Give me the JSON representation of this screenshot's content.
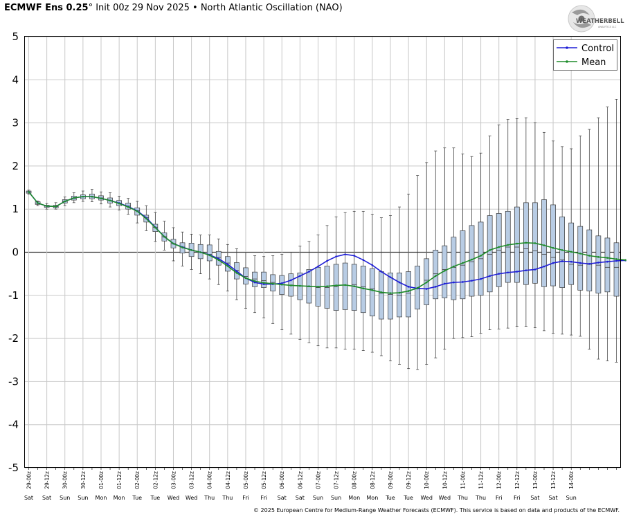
{
  "header": {
    "model": "ECMWF Ens 0.25",
    "degree": "°",
    "init": " Init 00z 29 Nov 2025",
    "bullet": " • ",
    "index": "North Atlantic Oscillation (NAO)"
  },
  "logo": {
    "line1": "WEATHERBELL",
    "line2": "ANALYTICS LLC",
    "icon": "hurricane-swirl-icon"
  },
  "footer": {
    "copyright": "© 2025 European Centre for Medium-Range Weather Forecasts (ECMWF). This service is based on data and products of the ECMWF."
  },
  "chart_data": {
    "type": "box",
    "title": "North Atlantic Oscillation (NAO)",
    "ylim": [
      -5,
      5
    ],
    "yticks": [
      5,
      4,
      3,
      2,
      1,
      0,
      -1,
      -2,
      -3,
      -4,
      -5
    ],
    "grid": true,
    "legend_position": "top-right",
    "legend": [
      {
        "name": "Control",
        "color": "#1f1fd6"
      },
      {
        "name": "Mean",
        "color": "#1e8c2a"
      }
    ],
    "x_labels": [
      "29-00z",
      "29-12z",
      "30-00z",
      "30-12z",
      "01-00z",
      "01-12z",
      "02-00z",
      "02-12z",
      "03-00z",
      "03-12z",
      "04-00z",
      "04-12z",
      "05-00z",
      "05-12z",
      "06-00z",
      "06-12z",
      "07-00z",
      "07-12z",
      "08-00z",
      "08-12z",
      "09-00z",
      "09-12z",
      "10-00z",
      "10-12z",
      "11-00z",
      "11-12z",
      "12-00z",
      "12-12z",
      "13-00z",
      "13-12z",
      "14-00z"
    ],
    "x_days": [
      "Sat",
      "Sat",
      "Sun",
      "Sun",
      "Mon",
      "Mon",
      "Tue",
      "Tue",
      "Wed",
      "Wed",
      "Thu",
      "Thu",
      "Fri",
      "Fri",
      "Sat",
      "Sat",
      "Sun",
      "Sun",
      "Mon",
      "Mon",
      "Tue",
      "Tue",
      "Wed",
      "Wed",
      "Thu",
      "Thu",
      "Fri",
      "Fri",
      "Sat",
      "Sat",
      "Sun"
    ],
    "steps_per_label": 2,
    "box_color": "#b8cce4",
    "boxes": [
      {
        "min": 1.35,
        "q1": 1.37,
        "med": 1.4,
        "q3": 1.42,
        "max": 1.44
      },
      {
        "min": 1.08,
        "q1": 1.11,
        "med": 1.14,
        "q3": 1.17,
        "max": 1.19
      },
      {
        "min": 1.0,
        "q1": 1.04,
        "med": 1.07,
        "q3": 1.09,
        "max": 1.13
      },
      {
        "min": 1.0,
        "q1": 1.03,
        "med": 1.06,
        "q3": 1.09,
        "max": 1.15
      },
      {
        "min": 1.08,
        "q1": 1.14,
        "med": 1.18,
        "q3": 1.22,
        "max": 1.28
      },
      {
        "min": 1.15,
        "q1": 1.21,
        "med": 1.25,
        "q3": 1.3,
        "max": 1.38
      },
      {
        "min": 1.18,
        "q1": 1.24,
        "med": 1.29,
        "q3": 1.33,
        "max": 1.42
      },
      {
        "min": 1.17,
        "q1": 1.24,
        "med": 1.29,
        "q3": 1.35,
        "max": 1.46
      },
      {
        "min": 1.12,
        "q1": 1.21,
        "med": 1.26,
        "q3": 1.31,
        "max": 1.4
      },
      {
        "min": 1.05,
        "q1": 1.14,
        "med": 1.2,
        "q3": 1.26,
        "max": 1.38
      },
      {
        "min": 0.98,
        "q1": 1.08,
        "med": 1.14,
        "q3": 1.2,
        "max": 1.3
      },
      {
        "min": 0.88,
        "q1": 1.0,
        "med": 1.07,
        "q3": 1.14,
        "max": 1.25
      },
      {
        "min": 0.68,
        "q1": 0.86,
        "med": 0.96,
        "q3": 1.03,
        "max": 1.18
      },
      {
        "min": 0.5,
        "q1": 0.7,
        "med": 0.8,
        "q3": 0.86,
        "max": 1.08
      },
      {
        "min": 0.25,
        "q1": 0.48,
        "med": 0.58,
        "q3": 0.65,
        "max": 0.92
      },
      {
        "min": 0.05,
        "q1": 0.26,
        "med": 0.36,
        "q3": 0.45,
        "max": 0.72
      },
      {
        "min": -0.2,
        "q1": 0.1,
        "med": 0.2,
        "q3": 0.3,
        "max": 0.57
      },
      {
        "min": -0.32,
        "q1": -0.02,
        "med": 0.12,
        "q3": 0.22,
        "max": 0.47
      },
      {
        "min": -0.4,
        "q1": -0.1,
        "med": 0.05,
        "q3": 0.21,
        "max": 0.42
      },
      {
        "min": -0.5,
        "q1": -0.15,
        "med": 0.0,
        "q3": 0.18,
        "max": 0.4
      },
      {
        "min": -0.62,
        "q1": -0.2,
        "med": -0.05,
        "q3": 0.17,
        "max": 0.4
      },
      {
        "min": -0.75,
        "q1": -0.3,
        "med": -0.12,
        "q3": 0.02,
        "max": 0.31
      },
      {
        "min": -0.9,
        "q1": -0.44,
        "med": -0.25,
        "q3": -0.1,
        "max": 0.18
      },
      {
        "min": -1.1,
        "q1": -0.62,
        "med": -0.42,
        "q3": -0.24,
        "max": 0.08
      },
      {
        "min": -1.3,
        "q1": -0.74,
        "med": -0.56,
        "q3": -0.36,
        "max": 0.0
      },
      {
        "min": -1.4,
        "q1": -0.8,
        "med": -0.62,
        "q3": -0.46,
        "max": -0.08
      },
      {
        "min": -1.52,
        "q1": -0.82,
        "med": -0.66,
        "q3": -0.46,
        "max": -0.1
      },
      {
        "min": -1.65,
        "q1": -0.9,
        "med": -0.7,
        "q3": -0.52,
        "max": -0.08
      },
      {
        "min": -1.8,
        "q1": -0.98,
        "med": -0.75,
        "q3": -0.54,
        "max": -0.05
      },
      {
        "min": -1.9,
        "q1": -1.02,
        "med": -0.76,
        "q3": -0.5,
        "max": 0.0
      },
      {
        "min": -2.02,
        "q1": -1.1,
        "med": -0.78,
        "q3": -0.48,
        "max": 0.14
      },
      {
        "min": -2.1,
        "q1": -1.18,
        "med": -0.8,
        "q3": -0.4,
        "max": 0.25
      },
      {
        "min": -2.17,
        "q1": -1.25,
        "med": -0.82,
        "q3": -0.35,
        "max": 0.4
      },
      {
        "min": -2.22,
        "q1": -1.3,
        "med": -0.82,
        "q3": -0.32,
        "max": 0.62
      },
      {
        "min": -2.22,
        "q1": -1.35,
        "med": -0.8,
        "q3": -0.28,
        "max": 0.82
      },
      {
        "min": -2.25,
        "q1": -1.33,
        "med": -0.76,
        "q3": -0.25,
        "max": 0.92
      },
      {
        "min": -2.25,
        "q1": -1.35,
        "med": -0.75,
        "q3": -0.28,
        "max": 0.95
      },
      {
        "min": -2.28,
        "q1": -1.4,
        "med": -0.8,
        "q3": -0.32,
        "max": 0.95
      },
      {
        "min": -2.32,
        "q1": -1.48,
        "med": -0.85,
        "q3": -0.38,
        "max": 0.88
      },
      {
        "min": -2.4,
        "q1": -1.55,
        "med": -0.95,
        "q3": -0.45,
        "max": 0.8
      },
      {
        "min": -2.52,
        "q1": -1.55,
        "med": -0.98,
        "q3": -0.48,
        "max": 0.85
      },
      {
        "min": -2.6,
        "q1": -1.5,
        "med": -1.0,
        "q3": -0.48,
        "max": 1.05
      },
      {
        "min": -2.7,
        "q1": -1.5,
        "med": -0.95,
        "q3": -0.45,
        "max": 1.35
      },
      {
        "min": -2.72,
        "q1": -1.32,
        "med": -0.85,
        "q3": -0.32,
        "max": 1.78
      },
      {
        "min": -2.6,
        "q1": -1.22,
        "med": -0.65,
        "q3": -0.15,
        "max": 2.08
      },
      {
        "min": -2.45,
        "q1": -1.08,
        "med": -0.5,
        "q3": 0.05,
        "max": 2.35
      },
      {
        "min": -2.25,
        "q1": -1.06,
        "med": -0.4,
        "q3": 0.15,
        "max": 2.42
      },
      {
        "min": -2.0,
        "q1": -1.1,
        "med": -0.35,
        "q3": 0.35,
        "max": 2.42
      },
      {
        "min": -1.98,
        "q1": -1.08,
        "med": -0.3,
        "q3": 0.5,
        "max": 2.28
      },
      {
        "min": -1.96,
        "q1": -1.02,
        "med": -0.22,
        "q3": 0.62,
        "max": 2.22
      },
      {
        "min": -1.88,
        "q1": -1.0,
        "med": -0.15,
        "q3": 0.7,
        "max": 2.3
      },
      {
        "min": -1.8,
        "q1": -0.92,
        "med": -0.05,
        "q3": 0.85,
        "max": 2.7
      },
      {
        "min": -1.78,
        "q1": -0.8,
        "med": 0.05,
        "q3": 0.9,
        "max": 2.95
      },
      {
        "min": -1.76,
        "q1": -0.7,
        "med": 0.12,
        "q3": 0.95,
        "max": 3.08
      },
      {
        "min": -1.72,
        "q1": -0.7,
        "med": 0.12,
        "q3": 1.05,
        "max": 3.1
      },
      {
        "min": -1.72,
        "q1": -0.75,
        "med": 0.08,
        "q3": 1.15,
        "max": 3.12
      },
      {
        "min": -1.75,
        "q1": -0.72,
        "med": 0.03,
        "q3": 1.15,
        "max": 3.0
      },
      {
        "min": -1.82,
        "q1": -0.8,
        "med": -0.05,
        "q3": 1.22,
        "max": 2.78
      },
      {
        "min": -1.88,
        "q1": -0.78,
        "med": -0.12,
        "q3": 1.1,
        "max": 2.58
      },
      {
        "min": -1.9,
        "q1": -0.82,
        "med": -0.18,
        "q3": 0.82,
        "max": 2.45
      },
      {
        "min": -1.92,
        "q1": -0.75,
        "med": -0.28,
        "q3": 0.68,
        "max": 2.4
      },
      {
        "min": -1.95,
        "q1": -0.88,
        "med": -0.3,
        "q3": 0.6,
        "max": 2.7
      },
      {
        "min": -2.25,
        "q1": -0.9,
        "med": -0.28,
        "q3": 0.52,
        "max": 2.85
      },
      {
        "min": -2.48,
        "q1": -0.95,
        "med": -0.3,
        "q3": 0.38,
        "max": 3.12
      },
      {
        "min": -2.52,
        "q1": -0.92,
        "med": -0.35,
        "q3": 0.33,
        "max": 3.37
      },
      {
        "min": -2.55,
        "q1": -1.02,
        "med": -0.35,
        "q3": 0.22,
        "max": 3.55
      }
    ],
    "series": [
      {
        "name": "Control",
        "color": "#1f1fd6",
        "values": [
          1.4,
          1.14,
          1.07,
          1.06,
          1.18,
          1.26,
          1.29,
          1.29,
          1.25,
          1.2,
          1.14,
          1.06,
          0.96,
          0.8,
          0.58,
          0.36,
          0.2,
          0.12,
          0.05,
          0.0,
          -0.06,
          -0.15,
          -0.28,
          -0.44,
          -0.6,
          -0.7,
          -0.74,
          -0.74,
          -0.72,
          -0.65,
          -0.55,
          -0.45,
          -0.33,
          -0.2,
          -0.1,
          -0.05,
          -0.08,
          -0.18,
          -0.3,
          -0.45,
          -0.58,
          -0.7,
          -0.8,
          -0.84,
          -0.85,
          -0.8,
          -0.73,
          -0.7,
          -0.69,
          -0.66,
          -0.62,
          -0.55,
          -0.5,
          -0.47,
          -0.45,
          -0.42,
          -0.4,
          -0.33,
          -0.25,
          -0.21,
          -0.22,
          -0.25,
          -0.27,
          -0.24,
          -0.22,
          -0.2,
          -0.19
        ]
      },
      {
        "name": "Mean",
        "color": "#1e8c2a",
        "values": [
          1.4,
          1.14,
          1.07,
          1.06,
          1.18,
          1.26,
          1.29,
          1.29,
          1.25,
          1.2,
          1.13,
          1.05,
          0.95,
          0.78,
          0.57,
          0.36,
          0.2,
          0.11,
          0.05,
          0.0,
          -0.07,
          -0.18,
          -0.32,
          -0.48,
          -0.6,
          -0.67,
          -0.71,
          -0.73,
          -0.75,
          -0.77,
          -0.78,
          -0.79,
          -0.8,
          -0.79,
          -0.77,
          -0.76,
          -0.79,
          -0.84,
          -0.88,
          -0.93,
          -0.95,
          -0.94,
          -0.9,
          -0.83,
          -0.7,
          -0.55,
          -0.43,
          -0.33,
          -0.25,
          -0.17,
          -0.08,
          0.05,
          0.12,
          0.17,
          0.2,
          0.22,
          0.21,
          0.16,
          0.1,
          0.05,
          0.01,
          -0.03,
          -0.08,
          -0.11,
          -0.13,
          -0.16,
          -0.18
        ]
      }
    ]
  }
}
